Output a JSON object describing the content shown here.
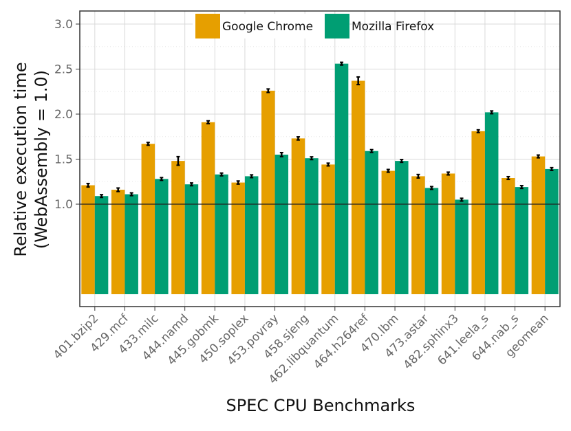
{
  "chart_data": {
    "type": "bar",
    "title": "",
    "xlabel": "SPEC CPU Benchmarks",
    "ylabel_line1": "Relative execution time",
    "ylabel_line2": "(WebAssembly = 1.0)",
    "ylim": [
      0.0,
      3.15
    ],
    "yticks": [
      1.0,
      1.5,
      2.0,
      2.5,
      3.0
    ],
    "ytick_labels": [
      "1.0",
      "1.5",
      "2.0",
      "2.5",
      "3.0"
    ],
    "baseline": 1.0,
    "grid": true,
    "legend_position": "top-center",
    "categories": [
      "401.bzip2",
      "429.mcf",
      "433.milc",
      "444.namd",
      "445.gobmk",
      "450.soplex",
      "453.povray",
      "458.sjeng",
      "462.libquantum",
      "464.h264ref",
      "470.lbm",
      "473.astar",
      "482.sphinx3",
      "641.leela_s",
      "644.nab_s",
      "geomean"
    ],
    "series": [
      {
        "name": "Google Chrome",
        "color": "#E69F00",
        "values": [
          1.21,
          1.16,
          1.67,
          1.48,
          1.91,
          1.24,
          2.26,
          1.73,
          1.44,
          2.37,
          1.37,
          1.31,
          1.34,
          1.81,
          1.29,
          1.53
        ],
        "errors": [
          0.012,
          0.012,
          0.008,
          0.04,
          0.008,
          0.01,
          0.012,
          0.01,
          0.008,
          0.035,
          0.008,
          0.012,
          0.008,
          0.008,
          0.008,
          0.008
        ]
      },
      {
        "name": "Mozilla Firefox",
        "color": "#009E73",
        "values": [
          1.09,
          1.11,
          1.28,
          1.22,
          1.33,
          1.31,
          1.55,
          1.51,
          2.56,
          1.59,
          1.48,
          1.18,
          1.05,
          2.02,
          1.19,
          1.39
        ],
        "errors": [
          0.008,
          0.008,
          0.008,
          0.008,
          0.008,
          0.008,
          0.015,
          0.008,
          0.008,
          0.008,
          0.008,
          0.008,
          0.008,
          0.008,
          0.008,
          0.008
        ]
      }
    ]
  }
}
